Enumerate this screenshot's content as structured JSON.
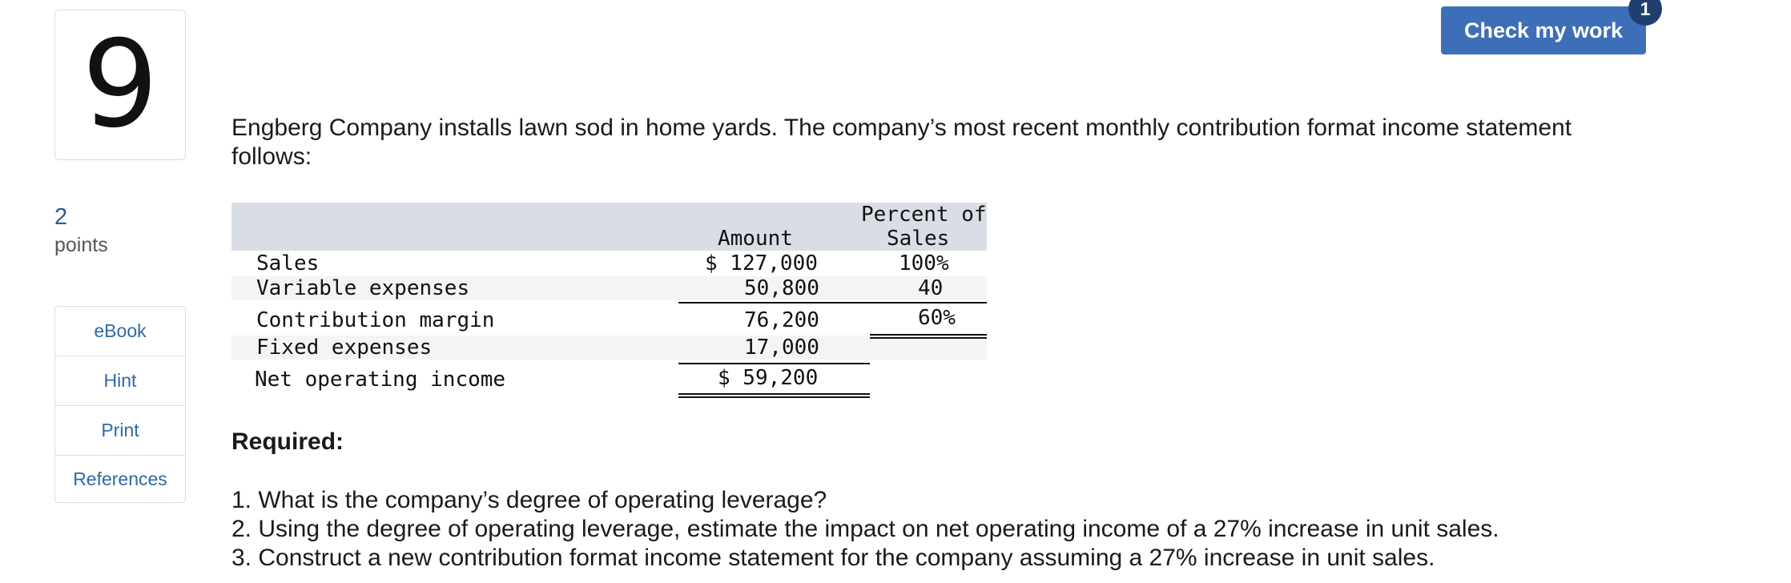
{
  "question": {
    "number": "9",
    "points_value": "2",
    "points_label": "points"
  },
  "tools": [
    "eBook",
    "Hint",
    "Print",
    "References"
  ],
  "header": {
    "check_label": "Check my work",
    "badge": "1"
  },
  "intro": "Engberg Company installs lawn sod in home yards. The company’s most recent monthly contribution format income statement follows:",
  "statement": {
    "col_amount": "Amount",
    "col_percent_1": "Percent of",
    "col_percent_2": "Sales",
    "rows": [
      {
        "label": "Sales",
        "amount": "$ 127,000",
        "percent": "100%"
      },
      {
        "label": "Variable expenses",
        "amount": "50,800",
        "percent": "40"
      },
      {
        "label": "Contribution margin",
        "amount": "76,200",
        "percent": "60%"
      },
      {
        "label": "Fixed expenses",
        "amount": "17,000",
        "percent": ""
      },
      {
        "label": "Net operating income",
        "amount": "$ 59,200",
        "percent": ""
      }
    ]
  },
  "required": {
    "title": "Required:",
    "items": [
      "1. What is the company’s degree of operating leverage?",
      "2. Using the degree of operating leverage, estimate the impact on net operating income of a 27% increase in unit sales.",
      "3. Construct a new contribution format income statement for the company assuming a 27% increase in unit sales."
    ]
  }
}
